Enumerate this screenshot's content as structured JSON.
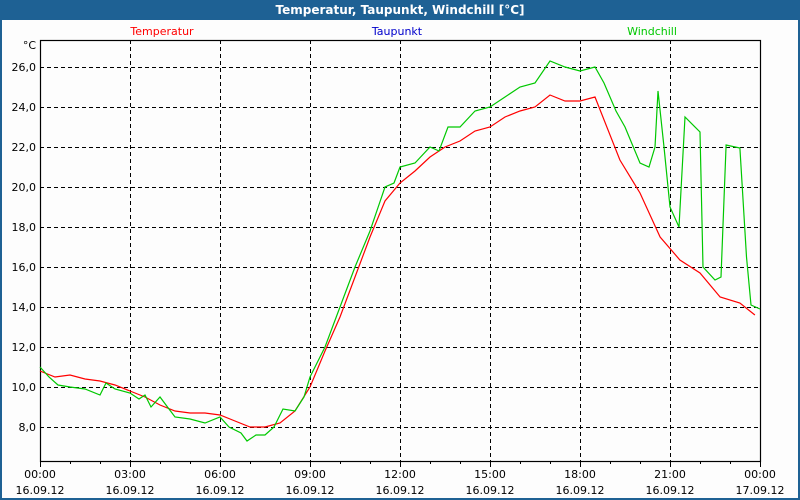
{
  "window": {
    "title": "Temperatur, Taupunkt, Windchill [°C]"
  },
  "colors": {
    "Temperatur": "#ff0000",
    "Taupunkt": "#0000cc",
    "Windchill": "#00c800"
  },
  "chart_data": {
    "type": "line",
    "title": "Temperatur, Taupunkt, Windchill [°C]",
    "ylabel": "°C",
    "xlabel": "",
    "ylim": [
      6.3,
      27.35
    ],
    "xlim_hours": [
      0,
      24
    ],
    "grid": true,
    "legend_placement": "top",
    "yticks": [
      "8,0",
      "10,0",
      "12,0",
      "14,0",
      "16,0",
      "18,0",
      "20,0",
      "22,0",
      "24,0",
      "26,0"
    ],
    "ytick_values": [
      8,
      10,
      12,
      14,
      16,
      18,
      20,
      22,
      24,
      26
    ],
    "xticks": [
      {
        "h": 0,
        "time": "00:00",
        "date": "16.09.12"
      },
      {
        "h": 3,
        "time": "03:00",
        "date": "16.09.12"
      },
      {
        "h": 6,
        "time": "06:00",
        "date": "16.09.12"
      },
      {
        "h": 9,
        "time": "09:00",
        "date": "16.09.12"
      },
      {
        "h": 12,
        "time": "12:00",
        "date": "16.09.12"
      },
      {
        "h": 15,
        "time": "15:00",
        "date": "16.09.12"
      },
      {
        "h": 18,
        "time": "18:00",
        "date": "16.09.12"
      },
      {
        "h": 21,
        "time": "21:00",
        "date": "16.09.12"
      },
      {
        "h": 24,
        "time": "00:00",
        "date": "17.09.12"
      }
    ],
    "series": [
      {
        "name": "Temperatur",
        "x": [
          0,
          0.5,
          1,
          1.5,
          2,
          2.5,
          3,
          3.5,
          4,
          4.5,
          5,
          5.5,
          6,
          6.5,
          7,
          7.5,
          8,
          8.5,
          9,
          9.5,
          10,
          10.5,
          11,
          11.5,
          12,
          12.5,
          13,
          13.5,
          14,
          14.5,
          15,
          15.5,
          16,
          16.5,
          17,
          17.5,
          18,
          18.5,
          19.33,
          20,
          20.67,
          21.33,
          22,
          22.67,
          23.33,
          23.83
        ],
        "y": [
          10.8,
          10.5,
          10.6,
          10.4,
          10.3,
          10.1,
          9.8,
          9.5,
          9.1,
          8.8,
          8.7,
          8.7,
          8.6,
          8.3,
          8.0,
          8.0,
          8.2,
          8.8,
          10.0,
          11.8,
          13.5,
          15.5,
          17.5,
          19.3,
          20.2,
          20.8,
          21.5,
          22.0,
          22.3,
          22.8,
          23.0,
          23.5,
          23.8,
          24.0,
          24.6,
          24.3,
          24.3,
          24.5,
          21.35,
          19.7,
          17.5,
          16.35,
          15.7,
          14.5,
          14.2,
          13.6
        ]
      },
      {
        "name": "Taupunkt",
        "x": [],
        "y": []
      },
      {
        "name": "Windchill",
        "x": [
          0,
          0.3,
          0.6,
          1,
          1.5,
          2,
          2.2,
          2.5,
          3,
          3.3,
          3.5,
          3.7,
          4,
          4.3,
          4.5,
          5,
          5.5,
          6,
          6.3,
          6.7,
          6.9,
          7.2,
          7.5,
          7.8,
          8.1,
          8.5,
          8.8,
          9,
          9.5,
          10,
          10.5,
          11,
          11.5,
          11.8,
          12,
          12.5,
          13,
          13.3,
          13.6,
          14,
          14.5,
          15,
          15.5,
          16,
          16.5,
          17,
          17.5,
          18,
          18.5,
          18.8,
          19.2,
          19.5,
          20,
          20.3,
          20.5,
          20.6,
          20.8,
          21,
          21.3,
          21.5,
          22,
          22.1,
          22.5,
          22.7,
          22.87,
          23.33,
          23.55,
          23.7,
          24
        ],
        "y": [
          11.0,
          10.5,
          10.1,
          10.0,
          9.9,
          9.6,
          10.2,
          9.9,
          9.7,
          9.4,
          9.6,
          9.0,
          9.5,
          8.9,
          8.5,
          8.4,
          8.2,
          8.5,
          8.0,
          7.7,
          7.3,
          7.6,
          7.6,
          8.0,
          8.9,
          8.8,
          9.5,
          10.5,
          12.0,
          14.0,
          16.0,
          17.8,
          20.0,
          20.2,
          21.0,
          21.2,
          22.0,
          21.8,
          23.0,
          23.0,
          23.8,
          24.0,
          24.5,
          25.0,
          25.2,
          26.3,
          26.0,
          25.8,
          26.0,
          25.2,
          23.8,
          23.0,
          21.2,
          21.0,
          22.0,
          24.8,
          22.0,
          19.0,
          18.0,
          23.5,
          22.75,
          16.0,
          15.35,
          15.5,
          22.1,
          21.95,
          16.5,
          14.1,
          13.9
        ]
      }
    ]
  }
}
